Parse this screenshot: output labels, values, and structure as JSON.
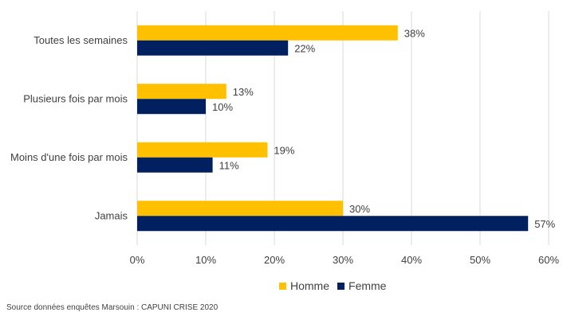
{
  "chart_data": {
    "type": "bar",
    "orientation": "horizontal",
    "categories": [
      "Toutes les semaines",
      "Plusieurs fois par mois",
      "Moins d'une fois par mois",
      "Jamais"
    ],
    "series": [
      {
        "name": "Homme",
        "values": [
          38,
          13,
          19,
          30
        ],
        "color": "#FFC000"
      },
      {
        "name": "Femme",
        "values": [
          22,
          10,
          11,
          57
        ],
        "color": "#002060"
      }
    ],
    "value_format": "percent",
    "xlim": [
      0,
      60
    ],
    "xticks": [
      0,
      10,
      20,
      30,
      40,
      50,
      60
    ],
    "xtick_labels": [
      "0%",
      "10%",
      "20%",
      "30%",
      "40%",
      "50%",
      "60%"
    ],
    "grid": "vertical",
    "legend_position": "bottom",
    "title": "",
    "xlabel": "",
    "ylabel": ""
  },
  "legend": {
    "items": [
      {
        "label": "Homme",
        "color": "#FFC000"
      },
      {
        "label": "Femme",
        "color": "#002060"
      }
    ]
  },
  "source": "Source données enquêtes Marsouin : CAPUNI CRISE 2020"
}
